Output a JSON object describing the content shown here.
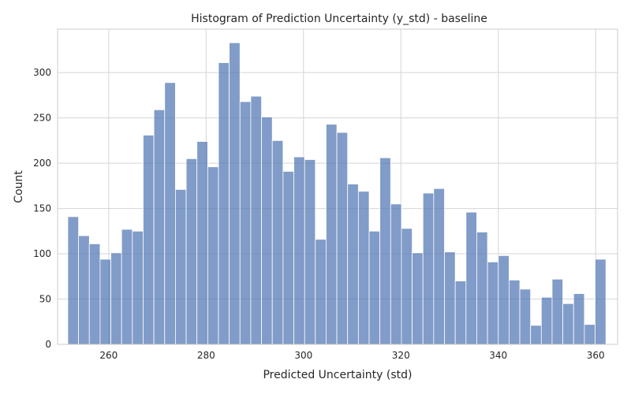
{
  "chart_data": {
    "type": "bar",
    "title": "Histogram of Prediction Uncertainty (y_std) - baseline",
    "xlabel": "Predicted Uncertainty (std)",
    "ylabel": "Count",
    "xlim": [
      249.5,
      364.5
    ],
    "ylim": [
      0,
      348
    ],
    "xticks": [
      260,
      280,
      300,
      320,
      340,
      360
    ],
    "yticks": [
      0,
      50,
      100,
      150,
      200,
      250,
      300
    ],
    "grid": true,
    "bin_start": 251.6,
    "bin_width": 2.21,
    "values": [
      141,
      120,
      111,
      94,
      101,
      127,
      125,
      231,
      259,
      289,
      171,
      205,
      224,
      196,
      311,
      333,
      268,
      274,
      251,
      225,
      191,
      207,
      204,
      116,
      243,
      234,
      177,
      169,
      125,
      206,
      155,
      128,
      101,
      167,
      172,
      102,
      70,
      146,
      124,
      91,
      98,
      71,
      61,
      21,
      52,
      72,
      45,
      56,
      22,
      94
    ]
  }
}
